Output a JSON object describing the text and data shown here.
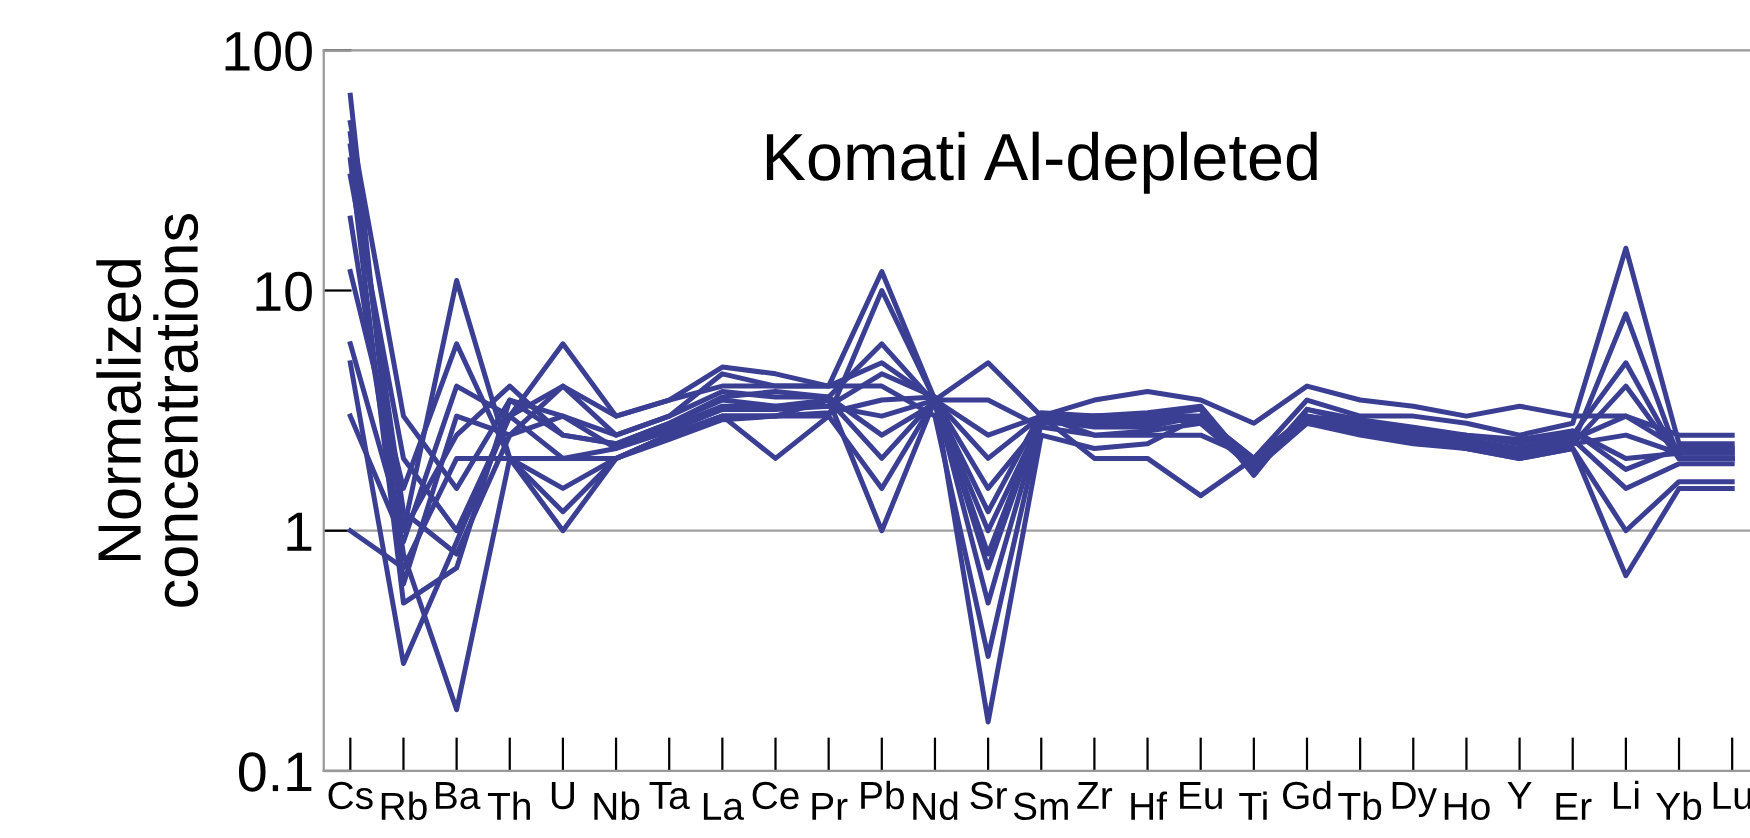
{
  "chart_data": {
    "type": "line",
    "title": "Komati Al-depleted",
    "ylabel": "Normalized\nconcentrations",
    "categories": [
      "Cs",
      "Rb",
      "Ba",
      "Th",
      "U",
      "Nb",
      "Ta",
      "La",
      "Ce",
      "Pr",
      "Pb",
      "Nd",
      "Sr",
      "Sm",
      "Zr",
      "Hf",
      "Eu",
      "Ti",
      "Gd",
      "Tb",
      "Dy",
      "Ho",
      "Y",
      "Er",
      "Li",
      "Yb",
      "Lu"
    ],
    "log": true,
    "ylim": [
      0.1,
      100
    ],
    "yticks": [
      0.1,
      1,
      10,
      100
    ],
    "grid": false,
    "legend": false,
    "marker": "none",
    "line_style": "solid",
    "ref_lines": [
      {
        "axis": "y",
        "value": 1,
        "label": null,
        "color": "#a0a0a0"
      }
    ],
    "series": [
      {
        "color": "#3b3f94",
        "values": [
          65,
          0.6,
          3,
          2.5,
          3,
          2.5,
          3,
          4.5,
          4,
          4,
          12,
          3.5,
          2,
          3,
          3,
          3,
          3,
          2,
          3.5,
          3,
          3,
          2.8,
          2.5,
          2.8,
          15,
          2.3,
          2.3
        ]
      },
      {
        "color": "#3b3f94",
        "values": [
          45,
          1,
          11,
          2,
          2,
          2,
          2.5,
          3,
          3,
          3,
          10,
          3.5,
          0.8,
          3,
          2.5,
          2.5,
          2.5,
          2,
          3,
          2.8,
          2.5,
          2.3,
          2,
          2.3,
          8,
          2,
          2
        ]
      },
      {
        "color": "#3b3f94",
        "values": [
          30,
          2,
          1,
          3,
          6,
          3,
          3.5,
          4,
          4,
          4,
          4,
          3,
          0.3,
          2.8,
          2.8,
          2.8,
          3,
          1.8,
          3,
          2.7,
          2.5,
          2.3,
          2.2,
          2.5,
          5,
          2,
          2
        ]
      },
      {
        "color": "#3b3f94",
        "values": [
          20,
          0.8,
          0.18,
          2,
          1,
          2,
          2.5,
          3,
          3,
          3.5,
          1,
          3.5,
          0.16,
          2.5,
          2.2,
          2.3,
          3,
          2,
          2.8,
          2.5,
          2.3,
          2.2,
          2,
          2.2,
          0.65,
          1.5,
          1.5
        ]
      },
      {
        "color": "#3b3f94",
        "values": [
          5,
          0.28,
          0.9,
          3,
          4,
          3,
          3.5,
          4.8,
          4.5,
          4,
          5,
          3.5,
          5,
          3,
          3.5,
          3.8,
          3.5,
          2.8,
          4,
          3.5,
          3.3,
          3,
          3.3,
          3,
          3,
          2.5,
          2.5
        ]
      },
      {
        "color": "#3b3f94",
        "values": [
          1,
          0.7,
          2,
          2,
          1.5,
          2,
          2.5,
          3,
          2,
          3,
          1.5,
          3.5,
          2.5,
          3,
          2,
          2,
          1.4,
          2,
          3,
          2.7,
          2.5,
          2.2,
          2,
          2.2,
          1,
          1.6,
          1.6
        ]
      },
      {
        "color": "#3b3f94",
        "values": [
          6,
          1,
          2.5,
          4,
          2.5,
          2.3,
          2.8,
          3.5,
          3.3,
          3.5,
          2,
          3.5,
          1.5,
          2.8,
          3,
          3,
          3.2,
          1.7,
          3.2,
          2.8,
          2.6,
          2.5,
          2.3,
          2.6,
          2,
          2.1,
          2.1
        ]
      },
      {
        "color": "#3b3f94",
        "values": [
          3,
          0.9,
          4,
          3,
          2,
          2.2,
          2.7,
          3.3,
          3.3,
          3.3,
          3,
          3.5,
          3.5,
          2.7,
          2.5,
          2.6,
          2.8,
          1.8,
          2.8,
          2.6,
          2.4,
          2.2,
          2.1,
          2.3,
          4,
          2,
          2
        ]
      },
      {
        "color": "#3b3f94",
        "values": [
          40,
          1.2,
          0.8,
          2.5,
          4,
          2.5,
          3,
          3.8,
          3.6,
          3.6,
          6,
          3.4,
          1,
          2.9,
          2.8,
          2.9,
          2.9,
          1.9,
          2.9,
          2.7,
          2.5,
          2.4,
          2.2,
          2.4,
          3,
          2.2,
          2.2
        ]
      },
      {
        "color": "#3b3f94",
        "values": [
          50,
          3,
          1.5,
          3.5,
          3,
          2.2,
          2.6,
          3.2,
          3.2,
          3.3,
          4.5,
          3.6,
          0.5,
          2.9,
          2.7,
          2.7,
          3,
          1.9,
          3,
          2.7,
          2.4,
          2.3,
          2.1,
          2.4,
          1.5,
          1.9,
          1.9
        ]
      },
      {
        "color": "#3b3f94",
        "values": [
          12,
          1.5,
          6,
          2,
          1.2,
          2,
          2.4,
          2.9,
          3,
          3.1,
          3.5,
          3.6,
          0.7,
          3,
          2.9,
          3,
          2.8,
          2,
          2.9,
          2.6,
          2.5,
          2.3,
          2.1,
          2.3,
          2.5,
          2.1,
          2.1
        ]
      },
      {
        "color": "#3b3f94",
        "values": [
          35,
          0.5,
          0.7,
          3.5,
          2.5,
          2.3,
          2.8,
          3.6,
          3.8,
          3.6,
          2.5,
          3.4,
          1.2,
          3.1,
          3,
          3.1,
          3.3,
          1.8,
          3.2,
          2.9,
          2.7,
          2.5,
          2.4,
          2.6,
          1.8,
          2.2,
          2.2
        ]
      }
    ]
  }
}
